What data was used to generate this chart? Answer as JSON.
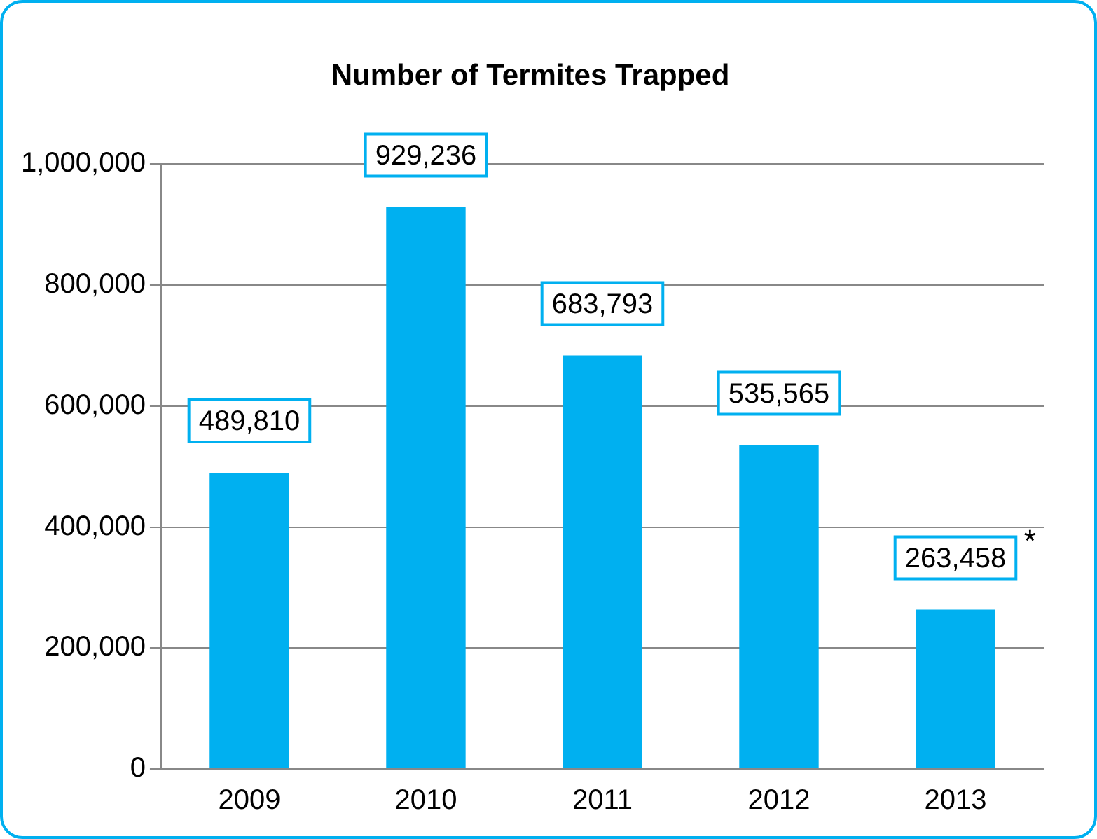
{
  "chart_data": {
    "type": "bar",
    "title": "Number of Termites Trapped",
    "categories": [
      "2009",
      "2010",
      "2011",
      "2012",
      "2013"
    ],
    "values": [
      489810,
      929236,
      683793,
      535565,
      263458
    ],
    "value_labels": [
      "489,810",
      "929,236",
      "683,793",
      "535,565",
      "263,458"
    ],
    "color": "#00b0f0",
    "ylim": [
      0,
      1000000
    ],
    "yticks": [
      {
        "value": 0,
        "label": "0"
      },
      {
        "value": 200000,
        "label": "200,000"
      },
      {
        "value": 400000,
        "label": "400,000"
      },
      {
        "value": 600000,
        "label": "600,000"
      },
      {
        "value": 800000,
        "label": "800,000"
      },
      {
        "value": 1000000,
        "label": "1,000,000"
      }
    ],
    "grid": "y",
    "annotations": [
      {
        "text": "*",
        "x": "2013",
        "y": 263458
      }
    ]
  }
}
